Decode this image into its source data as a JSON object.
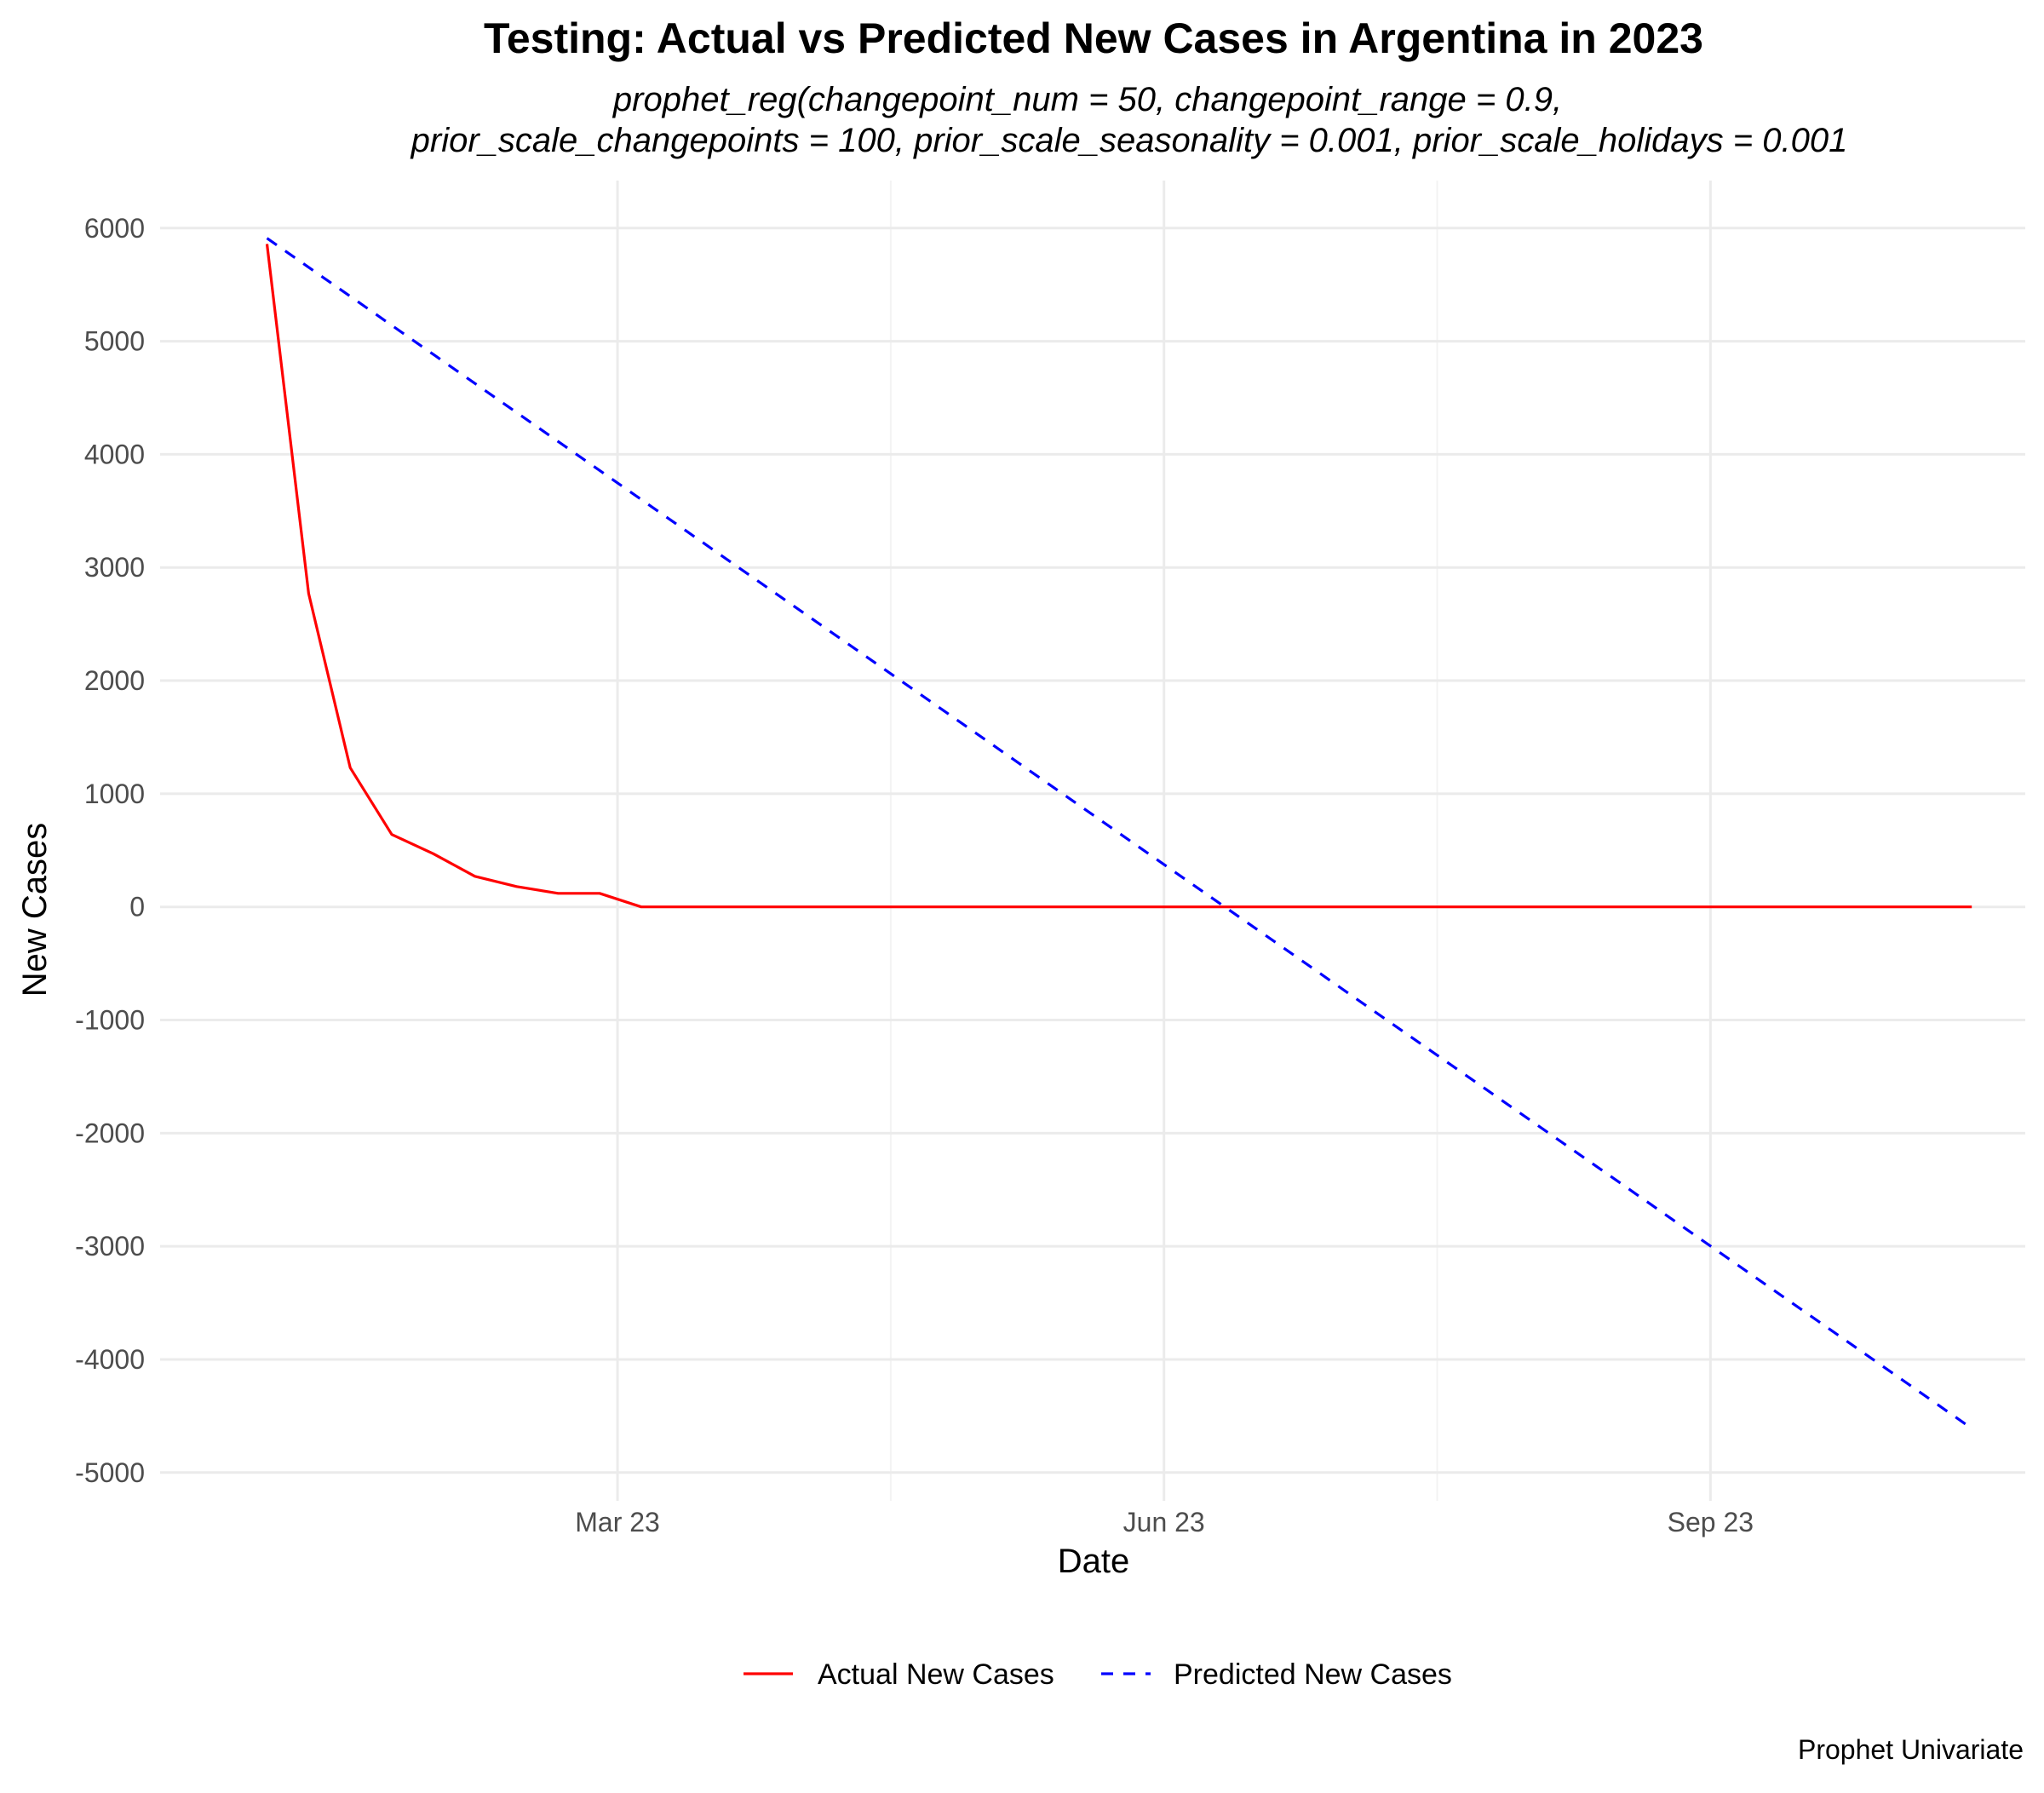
{
  "chart_data": {
    "type": "line",
    "title": "Testing: Actual vs Predicted New Cases in Argentina in 2023",
    "subtitle_lines": [
      "prophet_reg(changepoint_num = 50, changepoint_range = 0.9,",
      "prior_scale_changepoints = 100, prior_scale_seasonality = 0.001, prior_scale_holidays = 0.001"
    ],
    "xlabel": "Date",
    "ylabel": "New Cases",
    "caption": "Prophet Univariate",
    "legend_position": "bottom",
    "grid": true,
    "xlim": [
      "2022-12-14",
      "2023-10-24"
    ],
    "ylim": [
      -5250,
      6420
    ],
    "x_ticks": [
      {
        "date": "2023-03-01",
        "label": "Mar 23"
      },
      {
        "date": "2023-06-01",
        "label": "Jun 23"
      },
      {
        "date": "2023-09-01",
        "label": "Sep 23"
      }
    ],
    "y_ticks": [
      6000,
      5000,
      4000,
      3000,
      2000,
      1000,
      0,
      -1000,
      -2000,
      -3000,
      -4000,
      -5000
    ],
    "series": [
      {
        "name": "Actual New Cases",
        "color": "#ff0000",
        "dash": "solid",
        "x": [
          "2023-01-01",
          "2023-01-08",
          "2023-01-15",
          "2023-01-22",
          "2023-01-29",
          "2023-02-05",
          "2023-02-12",
          "2023-02-19",
          "2023-02-26",
          "2023-03-05",
          "2023-03-12",
          "2023-03-19",
          "2023-03-26",
          "2023-04-02",
          "2023-04-09",
          "2023-04-16",
          "2023-04-23",
          "2023-04-30",
          "2023-05-07",
          "2023-05-14",
          "2023-05-21",
          "2023-05-28",
          "2023-06-04",
          "2023-06-11",
          "2023-06-18",
          "2023-06-25",
          "2023-07-02",
          "2023-07-09",
          "2023-07-16",
          "2023-07-23",
          "2023-07-30",
          "2023-08-06",
          "2023-08-13",
          "2023-08-20",
          "2023-08-27",
          "2023-09-03",
          "2023-09-10",
          "2023-09-17",
          "2023-09-24",
          "2023-10-01",
          "2023-10-08",
          "2023-10-15"
        ],
        "y": [
          5860,
          2770,
          1230,
          640,
          470,
          270,
          180,
          120,
          120,
          0,
          0,
          0,
          0,
          0,
          0,
          0,
          0,
          0,
          0,
          0,
          0,
          0,
          0,
          0,
          0,
          0,
          0,
          0,
          0,
          0,
          0,
          0,
          0,
          0,
          0,
          0,
          0,
          0,
          0,
          0,
          0,
          0
        ]
      },
      {
        "name": "Predicted New Cases",
        "color": "#0000ff",
        "dash": "dashed",
        "x": [
          "2023-01-01",
          "2023-10-15"
        ],
        "y": [
          5910,
          -4610
        ]
      }
    ]
  }
}
